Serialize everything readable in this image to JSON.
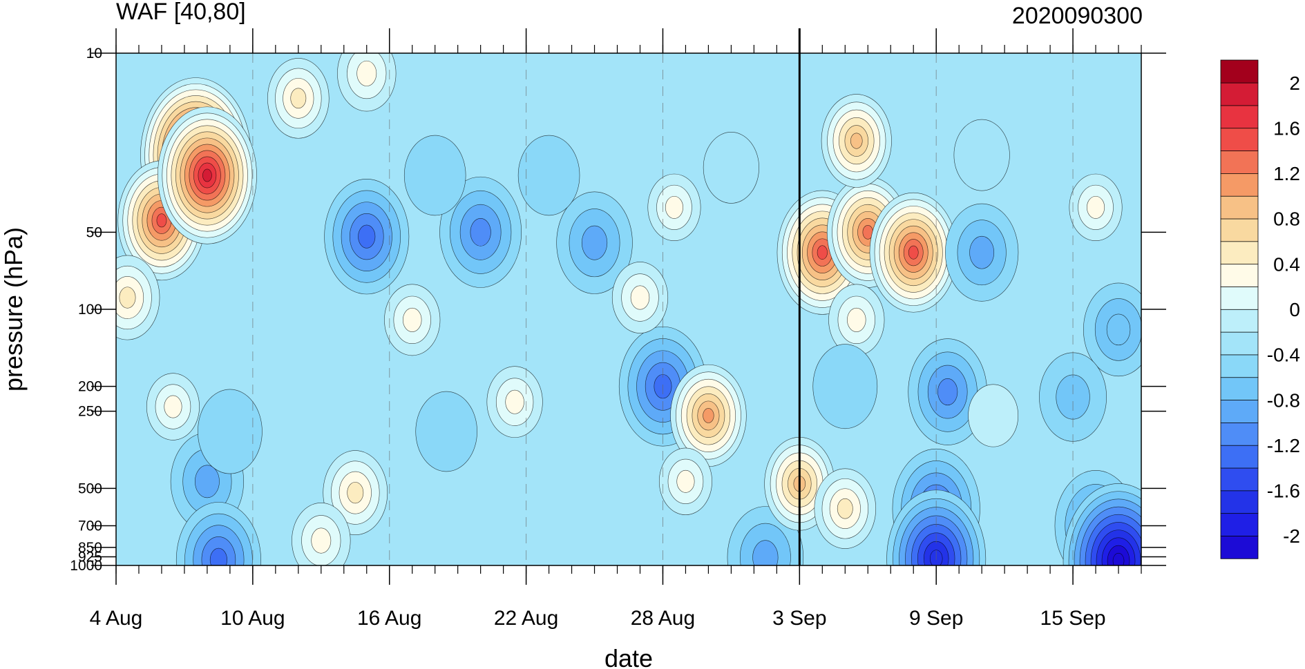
{
  "chart_data": {
    "type": "heatmap",
    "title": "WAF [40,80]",
    "date_label": "2020090300",
    "xlabel": "date",
    "ylabel": "pressure (hPa)",
    "x_range": [
      "2020-08-04",
      "2020-09-18"
    ],
    "x_ticks": [
      {
        "date": "2020-08-04",
        "label": "4 Aug"
      },
      {
        "date": "2020-08-10",
        "label": "10 Aug"
      },
      {
        "date": "2020-08-16",
        "label": "16 Aug"
      },
      {
        "date": "2020-08-22",
        "label": "22 Aug"
      },
      {
        "date": "2020-08-28",
        "label": "28 Aug"
      },
      {
        "date": "2020-09-03",
        "label": "3 Sep"
      },
      {
        "date": "2020-09-09",
        "label": "9 Sep"
      },
      {
        "date": "2020-09-15",
        "label": "15 Sep"
      }
    ],
    "current_date": "2020-09-03",
    "y_scale": "log",
    "y_reversed": true,
    "y_range": [
      1000,
      10
    ],
    "y_ticks": [
      {
        "value": 10,
        "label": "10"
      },
      {
        "value": 50,
        "label": "50"
      },
      {
        "value": 100,
        "label": "100"
      },
      {
        "value": 200,
        "label": "200"
      },
      {
        "value": 250,
        "label": "250"
      },
      {
        "value": 500,
        "label": "500"
      },
      {
        "value": 700,
        "label": "700"
      },
      {
        "value": 850,
        "label": "850"
      },
      {
        "value": 925,
        "label": "925"
      },
      {
        "value": 1000,
        "label": "1000"
      }
    ],
    "colorbar": {
      "levels": [
        -2.2,
        -2,
        -1.8,
        -1.6,
        -1.4,
        -1.2,
        -1,
        -0.8,
        -0.6,
        -0.4,
        -0.2,
        0,
        0.2,
        0.4,
        0.6,
        0.8,
        1,
        1.2,
        1.4,
        1.6,
        1.8,
        2,
        2.2
      ],
      "colors": [
        "#1c0bd6",
        "#1f1fe6",
        "#2333e8",
        "#2f4df0",
        "#3d6ff5",
        "#4f8df7",
        "#5eaaf8",
        "#72c6f8",
        "#8ad8f8",
        "#a3e4f9",
        "#bdeffa",
        "#e0fbfb",
        "#fffbe8",
        "#fcecc0",
        "#f9d9a0",
        "#f7c186",
        "#f59a66",
        "#f27356",
        "#ef4d48",
        "#e83340",
        "#d41c35",
        "#a3001c"
      ],
      "tick_labels": [
        {
          "value": 2,
          "label": "2"
        },
        {
          "value": 1.6,
          "label": "1.6"
        },
        {
          "value": 1.2,
          "label": "1.2"
        },
        {
          "value": 0.8,
          "label": "0.8"
        },
        {
          "value": 0.4,
          "label": "0.4"
        },
        {
          "value": 0,
          "label": "0"
        },
        {
          "value": -0.4,
          "label": "-0.4"
        },
        {
          "value": -0.8,
          "label": "-0.8"
        },
        {
          "value": -1.2,
          "label": "-1.2"
        },
        {
          "value": -1.6,
          "label": "-1.6"
        },
        {
          "value": -2,
          "label": "-2"
        }
      ]
    },
    "field_features": [
      {
        "date": "2020-08-07.5",
        "p": 25,
        "value": 2.2
      },
      {
        "date": "2020-08-06",
        "p": 45,
        "value": 1.4
      },
      {
        "date": "2020-08-04.5",
        "p": 90,
        "value": 0.6
      },
      {
        "date": "2020-08-08",
        "p": 30,
        "value": 1.8
      },
      {
        "date": "2020-08-12",
        "p": 15,
        "value": 0.5
      },
      {
        "date": "2020-08-15",
        "p": 12,
        "value": 0.4
      },
      {
        "date": "2020-08-15",
        "p": 52,
        "value": -1.3
      },
      {
        "date": "2020-08-20",
        "p": 50,
        "value": -1.2
      },
      {
        "date": "2020-08-18",
        "p": 30,
        "value": -0.5
      },
      {
        "date": "2020-08-25",
        "p": 55,
        "value": -1.0
      },
      {
        "date": "2020-08-23",
        "p": 30,
        "value": -0.5
      },
      {
        "date": "2020-08-17",
        "p": 110,
        "value": 0.3
      },
      {
        "date": "2020-08-14.5",
        "p": 520,
        "value": 0.6
      },
      {
        "date": "2020-08-13",
        "p": 800,
        "value": 0.4
      },
      {
        "date": "2020-08-06.5",
        "p": 240,
        "value": 0.2
      },
      {
        "date": "2020-08-08",
        "p": 470,
        "value": -0.9
      },
      {
        "date": "2020-08-08.5",
        "p": 950,
        "value": -1.3
      },
      {
        "date": "2020-08-09",
        "p": 300,
        "value": -0.6
      },
      {
        "date": "2020-08-18.5",
        "p": 300,
        "value": -0.5
      },
      {
        "date": "2020-08-21.5",
        "p": 230,
        "value": 0.3
      },
      {
        "date": "2020-08-28",
        "p": 200,
        "value": -1.4
      },
      {
        "date": "2020-08-27",
        "p": 90,
        "value": 0.3
      },
      {
        "date": "2020-08-28.5",
        "p": 40,
        "value": 0.2
      },
      {
        "date": "2020-08-30",
        "p": 260,
        "value": 1.0
      },
      {
        "date": "2020-08-29",
        "p": 470,
        "value": 0.2
      },
      {
        "date": "2020-09-01.5",
        "p": 930,
        "value": -1.0
      },
      {
        "date": "2020-08-31",
        "p": 28,
        "value": -0.3
      },
      {
        "date": "2020-09-03",
        "p": 480,
        "value": 0.8
      },
      {
        "date": "2020-09-04",
        "p": 60,
        "value": 1.5
      },
      {
        "date": "2020-09-06",
        "p": 50,
        "value": 1.2
      },
      {
        "date": "2020-09-08",
        "p": 60,
        "value": 1.4
      },
      {
        "date": "2020-09-05.5",
        "p": 22,
        "value": 0.8
      },
      {
        "date": "2020-09-05.5",
        "p": 110,
        "value": 0.3
      },
      {
        "date": "2020-09-05",
        "p": 600,
        "value": 0.5
      },
      {
        "date": "2020-09-05",
        "p": 200,
        "value": -0.6
      },
      {
        "date": "2020-09-09",
        "p": 600,
        "value": -1.4
      },
      {
        "date": "2020-09-09",
        "p": 940,
        "value": -1.8
      },
      {
        "date": "2020-09-09.5",
        "p": 210,
        "value": -1.1
      },
      {
        "date": "2020-09-11",
        "p": 60,
        "value": -0.9
      },
      {
        "date": "2020-09-11",
        "p": 25,
        "value": -0.3
      },
      {
        "date": "2020-09-16",
        "p": 40,
        "value": 0.2
      },
      {
        "date": "2020-09-17",
        "p": 120,
        "value": -0.8
      },
      {
        "date": "2020-09-16",
        "p": 700,
        "value": -1.2
      },
      {
        "date": "2020-09-17",
        "p": 960,
        "value": -2.2
      },
      {
        "date": "2020-09-11.5",
        "p": 260,
        "value": -0.1
      },
      {
        "date": "2020-09-15",
        "p": 220,
        "value": -0.7
      }
    ]
  }
}
